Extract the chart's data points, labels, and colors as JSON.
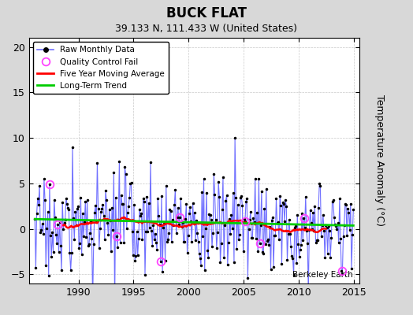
{
  "title": "BUCK FLAT",
  "subtitle": "39.133 N, 111.433 W (United States)",
  "ylabel": "Temperature Anomaly (°C)",
  "watermark": "Berkeley Earth",
  "xlim": [
    1985.5,
    2015.5
  ],
  "ylim": [
    -6,
    21
  ],
  "yticks": [
    -5,
    0,
    5,
    10,
    15,
    20
  ],
  "xticks": [
    1990,
    1995,
    2000,
    2005,
    2010,
    2015
  ],
  "raw_line_color": "#7070ff",
  "raw_dot_color": "#000000",
  "ma_color": "#ff0000",
  "trend_color": "#00cc00",
  "qc_color": "#ff44ff",
  "plot_bg": "#ffffff",
  "fig_bg": "#d8d8d8",
  "title_fontsize": 12,
  "subtitle_fontsize": 9,
  "seed": 17
}
